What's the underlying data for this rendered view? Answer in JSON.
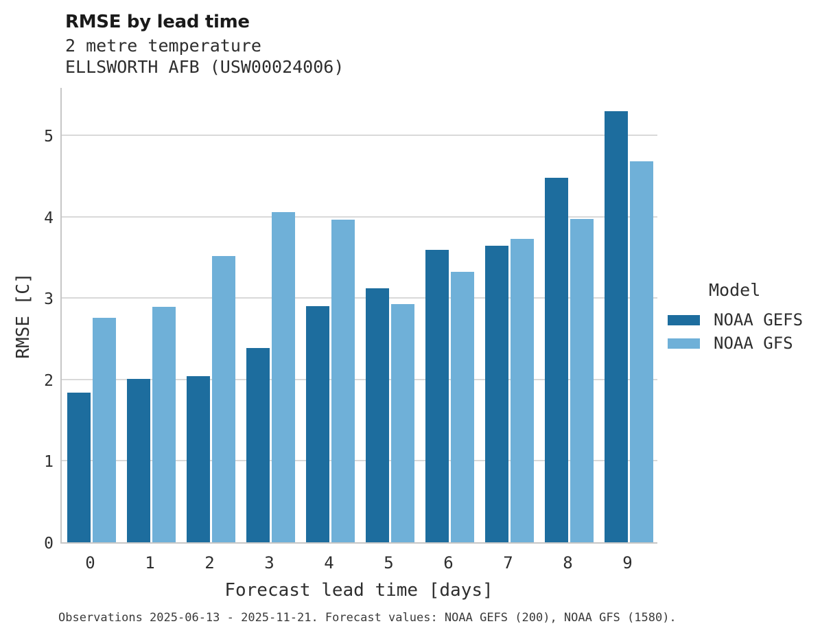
{
  "chart_data": {
    "type": "bar",
    "title": "RMSE by lead time",
    "subtitle1": "2 metre temperature",
    "subtitle2": "ELLSWORTH AFB (USW00024006)",
    "xlabel": "Forecast lead time [days]",
    "ylabel": "RMSE [C]",
    "categories": [
      "0",
      "1",
      "2",
      "3",
      "4",
      "5",
      "6",
      "7",
      "8",
      "9"
    ],
    "series": [
      {
        "name": "NOAA GEFS",
        "color": "#1d6d9e",
        "values": [
          1.84,
          2.01,
          2.04,
          2.39,
          2.9,
          3.12,
          3.59,
          3.64,
          4.48,
          5.3
        ]
      },
      {
        "name": "NOAA GFS",
        "color": "#6fb0d8",
        "values": [
          2.76,
          2.89,
          3.52,
          4.06,
          3.96,
          2.93,
          3.32,
          3.73,
          3.97,
          4.68
        ]
      }
    ],
    "ylim": [
      0,
      5.6
    ],
    "yticks": [
      0,
      1,
      2,
      3,
      4,
      5
    ],
    "grid": true,
    "legend_title": "Model",
    "legend_position": "right",
    "colors": {
      "grid": "#d9d9d9",
      "spine": "#c6c6c6"
    },
    "caption": "Observations 2025-06-13 - 2025-11-21. Forecast values: NOAA GEFS (200), NOAA GFS (1580)."
  }
}
